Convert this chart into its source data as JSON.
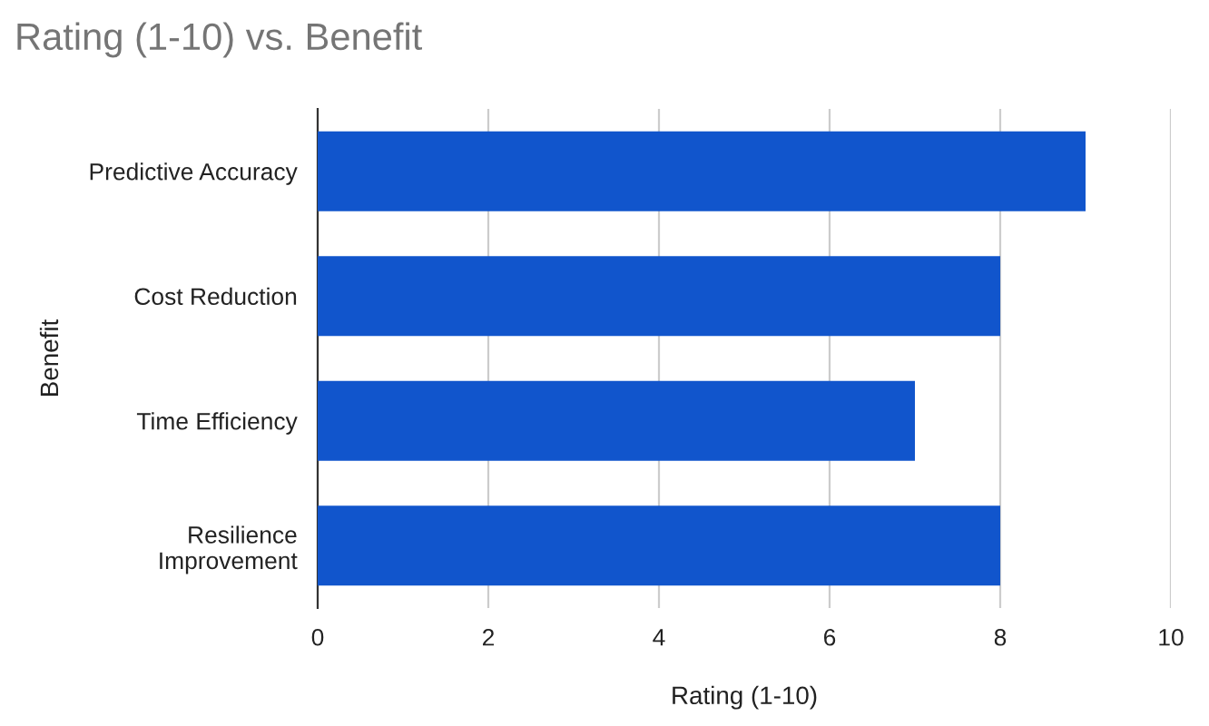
{
  "chart_data": {
    "type": "bar",
    "orientation": "horizontal",
    "title": "Rating (1-10) vs. Benefit",
    "xlabel": "Rating (1-10)",
    "ylabel": "Benefit",
    "categories": [
      "Predictive Accuracy",
      "Cost Reduction",
      "Time Efficiency",
      "Resilience Improvement"
    ],
    "values": [
      9,
      8,
      7,
      8
    ],
    "color": "#1155cc",
    "xlim": [
      0,
      10
    ],
    "xticks": [
      0,
      2,
      4,
      6,
      8,
      10
    ],
    "grid": "x"
  }
}
